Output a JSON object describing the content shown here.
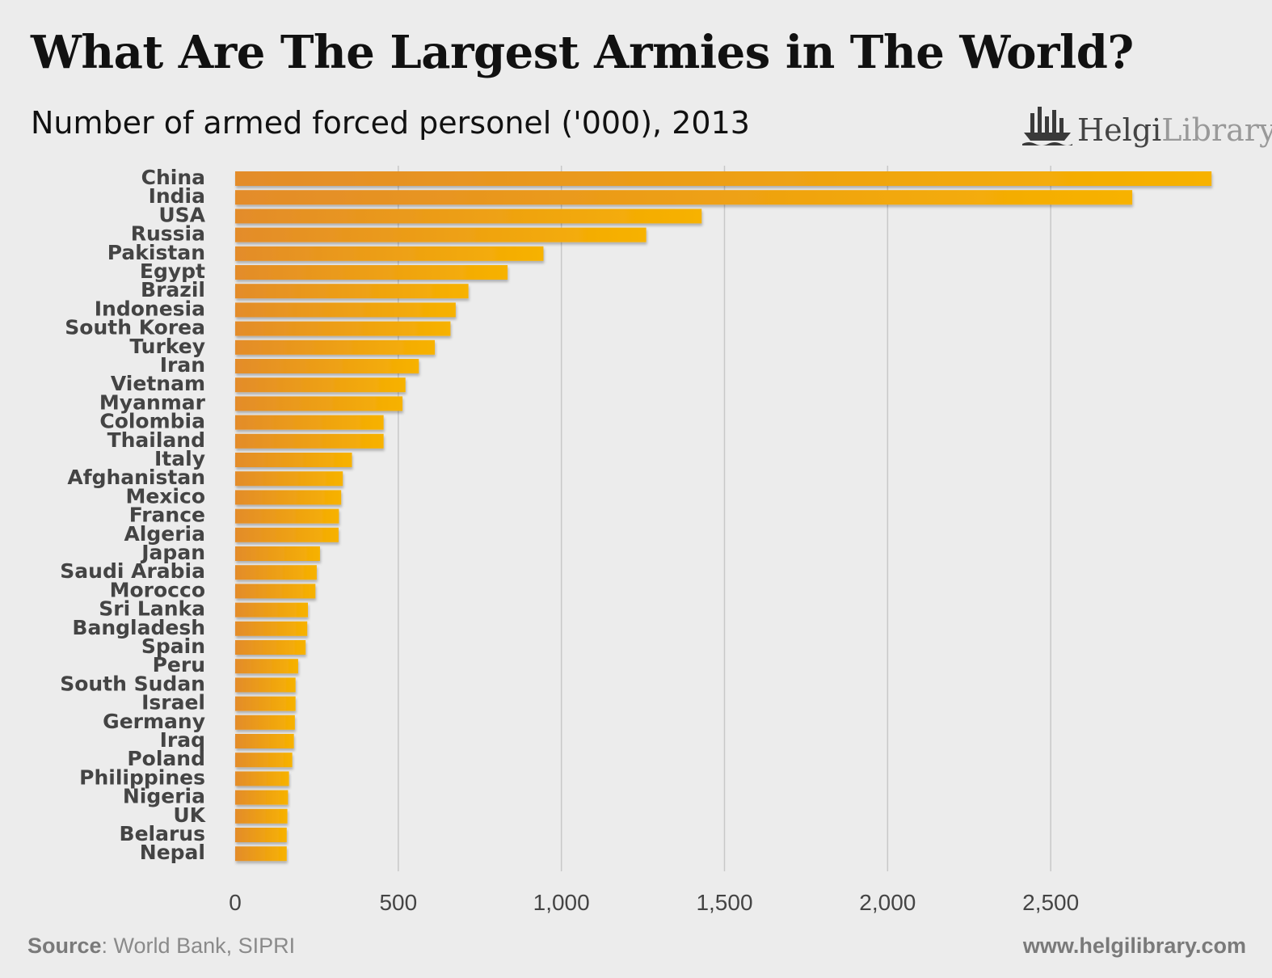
{
  "header": {
    "title": "What Are The Largest Armies in The World?",
    "subtitle": "Number of armed forced personel ('000), 2013"
  },
  "logo": {
    "icon": "ship-icon",
    "text_bold": "Helgi",
    "text_light": "Library."
  },
  "footer": {
    "source_label": "Source",
    "source_text": ": World Bank, SIPRI",
    "url": "www.helgilibrary.com"
  },
  "colors": {
    "background": "#ececec",
    "bar_start": "#e38c2a",
    "bar_end": "#f7b200",
    "grid": "#c8c8c8",
    "text": "#444444"
  },
  "chart_data": {
    "type": "bar",
    "orientation": "horizontal",
    "title": "What Are The Largest Armies in The World?",
    "subtitle": "Number of armed forced personel ('000), 2013",
    "categories": [
      "China",
      "India",
      "USA",
      "Russia",
      "Pakistan",
      "Egypt",
      "Brazil",
      "Indonesia",
      "South Korea",
      "Turkey",
      "Iran",
      "Vietnam",
      "Myanmar",
      "Colombia",
      "Thailand",
      "Italy",
      "Afghanistan",
      "Mexico",
      "France",
      "Algeria",
      "Japan",
      "Saudi Arabia",
      "Morocco",
      "Sri Lanka",
      "Bangladesh",
      "Spain",
      "Peru",
      "South Sudan",
      "Israel",
      "Germany",
      "Iraq",
      "Poland",
      "Philippines",
      "Nigeria",
      "UK",
      "Belarus",
      "Nepal"
    ],
    "values": [
      2993,
      2750,
      1430,
      1260,
      945,
      835,
      715,
      676,
      660,
      612,
      563,
      522,
      513,
      455,
      455,
      358,
      330,
      325,
      318,
      317,
      260,
      250,
      246,
      223,
      221,
      216,
      193,
      185,
      185,
      183,
      180,
      175,
      165,
      162,
      160,
      158,
      158
    ],
    "xlim": [
      0,
      3000
    ],
    "xticks": [
      0,
      500,
      1000,
      1500,
      2000,
      2500
    ],
    "xtick_labels": [
      "0",
      "500",
      "1,000",
      "1,500",
      "2,000",
      "2,500"
    ],
    "grid": true,
    "legend": "none"
  }
}
